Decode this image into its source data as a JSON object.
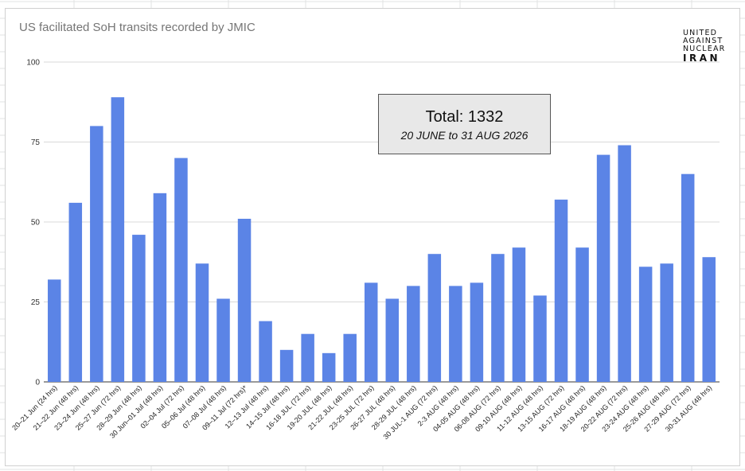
{
  "chart_data": {
    "type": "bar",
    "title": "US facilitated SoH transits recorded by JMIC",
    "xlabel": "",
    "ylabel": "",
    "ylim": [
      0,
      100
    ],
    "yticks": [
      0,
      25,
      50,
      75,
      100
    ],
    "grid": true,
    "legend": "none",
    "bar_color": "#5b84e6",
    "categories": [
      "20–21 Jun (24 hrs)",
      "21–22 Jun (48 hrs)",
      "23–24 Jun (48 hrs)",
      "25–27 Jun (72 hrs)",
      "28–29 Jun (48 hrs)",
      "30 Jun–01 Jul (48 hrs)",
      "02–04 Jul (72 hrs)",
      "05–06 Jul (48 hrs)",
      "07–08 Jul (48 hrs)",
      "09–11 Jul (72 hrs)*",
      "12–13 Jul (48 hrs)",
      "14–15 Jul (48 hrs)",
      "16-18 JUL (72 hrs)",
      "19-20 JUL (48 hrs)",
      "21-22 JUL (48 hrs)",
      "23-25 JUL (72 hrs)",
      "26-27 JUL (48 hrs)",
      "28-29 JUL (48 hrs)",
      "30 JUL-1 AUG (72 hrs)",
      "2-3 AUG (48 hrs)",
      "04-05 AUG (48 hrs)",
      "06-08 AUG (72 hrs)",
      "09-10 AUG (48 hrs)",
      "11-12 AUG (48 hrs)",
      "13-15 AUG (72 hrs)",
      "16-17 AUG (48 hrs)",
      "18-19 AUG (48 hrs)",
      "20-22 AUG (72 hrs)",
      "23-24 AUG (48 hrs)",
      "25-26 AUG (48 hrs)",
      "27-29 AUG (72 hrs)",
      "30-31 AUG (48 hrs)"
    ],
    "values": [
      32,
      56,
      80,
      89,
      46,
      59,
      70,
      37,
      26,
      51,
      19,
      10,
      15,
      9,
      15,
      31,
      26,
      30,
      40,
      30,
      31,
      40,
      42,
      27,
      57,
      42,
      71,
      74,
      36,
      37,
      65,
      39
    ],
    "annotation": {
      "total_label": "Total: 1332",
      "date_range": "20 JUNE to 31 AUG 2026"
    }
  },
  "logo": {
    "line1": "UNITED",
    "line2": "AGAINST",
    "line3": "NUCLEAR",
    "line4": "IRAN"
  }
}
